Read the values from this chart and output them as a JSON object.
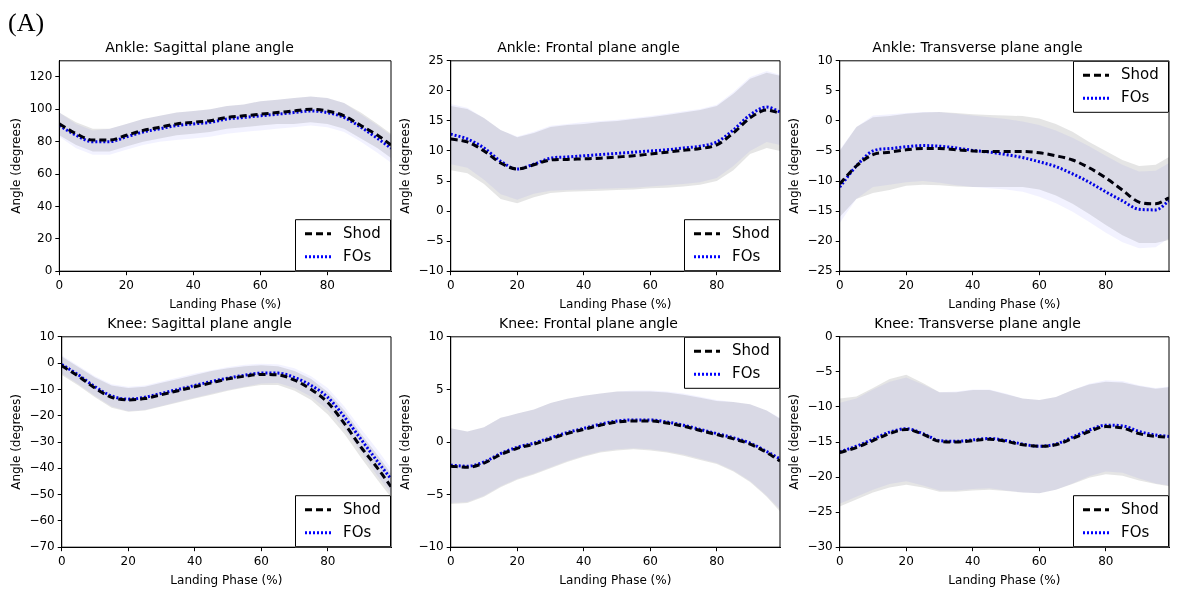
{
  "chart_data": [
    {
      "type": "line",
      "title": "Ankle: Sagittal plane angle",
      "xlabel": "Landing Phase (%)",
      "ylabel": "Angle (degrees)",
      "annotations": [
        "(A)"
      ],
      "legend": "bottom right",
      "x": [
        0,
        5,
        10,
        15,
        20,
        25,
        30,
        35,
        40,
        45,
        50,
        55,
        60,
        65,
        70,
        75,
        80,
        85,
        90,
        95,
        99
      ],
      "xlim": [
        0,
        99
      ],
      "xticks": [
        0,
        20,
        40,
        60,
        80
      ],
      "ylim": [
        0,
        130
      ],
      "yticks": [
        0,
        20,
        40,
        60,
        80,
        100,
        120
      ],
      "series": [
        {
          "name": "Shod",
          "color": "#000000",
          "line_style": "dashed",
          "values": [
            91,
            85,
            81,
            81,
            84,
            87,
            89,
            91,
            92,
            93,
            95,
            96,
            97,
            98,
            99,
            100,
            99,
            96,
            90,
            84,
            78
          ],
          "lower": [
            84,
            78,
            74,
            74,
            77,
            80,
            82,
            84,
            85,
            86,
            88,
            89,
            90,
            91,
            91,
            92,
            91,
            88,
            82,
            76,
            70
          ],
          "upper": [
            98,
            92,
            88,
            88,
            91,
            94,
            96,
            98,
            99,
            100,
            102,
            103,
            105,
            106,
            107,
            108,
            107,
            104,
            98,
            91,
            85
          ]
        },
        {
          "name": "FOs",
          "color": "#0000ff",
          "line_style": "dotted",
          "values": [
            90,
            84,
            80,
            80,
            83,
            86,
            88,
            90,
            91,
            92,
            94,
            95,
            96,
            97,
            98,
            99,
            98,
            95,
            89,
            82,
            76
          ],
          "lower": [
            83,
            76,
            72,
            72,
            75,
            78,
            80,
            81,
            82,
            83,
            85,
            86,
            87,
            88,
            89,
            90,
            89,
            86,
            80,
            73,
            67
          ],
          "upper": [
            98,
            91,
            87,
            88,
            91,
            94,
            96,
            98,
            99,
            100,
            102,
            103,
            105,
            106,
            107,
            108,
            107,
            104,
            97,
            90,
            84
          ]
        }
      ]
    },
    {
      "type": "line",
      "title": "Ankle: Frontal plane angle",
      "xlabel": "Landing Phase (%)",
      "ylabel": "Angle (degrees)",
      "legend": "bottom right",
      "x": [
        0,
        5,
        10,
        15,
        20,
        25,
        30,
        35,
        40,
        45,
        50,
        55,
        60,
        65,
        70,
        75,
        80,
        85,
        90,
        95,
        99
      ],
      "xlim": [
        0,
        99
      ],
      "xticks": [
        0,
        20,
        40,
        60,
        80
      ],
      "ylim": [
        -10,
        25
      ],
      "yticks": [
        -10,
        -5,
        0,
        5,
        10,
        15,
        20,
        25
      ],
      "series": [
        {
          "name": "Shod",
          "color": "#000000",
          "line_style": "dashed",
          "values": [
            12,
            11.5,
            10,
            8,
            7,
            7.7,
            8.5,
            8.6,
            8.7,
            8.8,
            9,
            9.2,
            9.5,
            9.8,
            10.1,
            10.4,
            11,
            13,
            15.5,
            16.8,
            16.3
          ],
          "lower": [
            6.8,
            6.3,
            4.5,
            2,
            1.3,
            2.3,
            3,
            3.2,
            3.3,
            3.4,
            3.5,
            3.6,
            3.8,
            3.9,
            4.1,
            4.4,
            5,
            6.8,
            9.5,
            10.5,
            10
          ],
          "upper": [
            17.5,
            17,
            15.5,
            13.5,
            12.3,
            13,
            14,
            14.3,
            14.5,
            14.8,
            15,
            15.3,
            15.6,
            16,
            16.4,
            16.8,
            17.5,
            19.5,
            22,
            23,
            22.5
          ]
        },
        {
          "name": "FOs",
          "color": "#0000ff",
          "line_style": "dotted",
          "values": [
            12.8,
            12,
            10.5,
            8.3,
            7,
            7.8,
            8.8,
            9,
            9.2,
            9.4,
            9.6,
            9.8,
            10,
            10.2,
            10.5,
            10.8,
            11.5,
            13.5,
            16,
            17.3,
            16.5
          ],
          "lower": [
            7.8,
            7.2,
            5.2,
            2.8,
            1.9,
            2.9,
            3.4,
            3.5,
            3.6,
            3.7,
            3.8,
            3.9,
            4.1,
            4.3,
            4.5,
            4.8,
            5.5,
            7.5,
            10,
            11.5,
            11
          ],
          "upper": [
            17.8,
            17.2,
            15.5,
            13.5,
            12.4,
            13.2,
            14.2,
            14.5,
            14.8,
            15,
            15.2,
            15.5,
            15.8,
            16.2,
            16.6,
            17,
            17.7,
            19.8,
            22.3,
            23.3,
            22.7
          ]
        }
      ]
    },
    {
      "type": "line",
      "title": "Ankle: Transverse plane angle",
      "xlabel": "Landing Phase (%)",
      "ylabel": "Angle (degrees)",
      "legend": "top right",
      "x": [
        0,
        5,
        10,
        15,
        20,
        25,
        30,
        35,
        40,
        45,
        50,
        55,
        60,
        65,
        70,
        75,
        80,
        85,
        90,
        95,
        99
      ],
      "xlim": [
        0,
        99
      ],
      "xticks": [
        0,
        20,
        40,
        60,
        80
      ],
      "ylim": [
        -25,
        10
      ],
      "yticks": [
        -25,
        -20,
        -15,
        -10,
        -5,
        0,
        5,
        10
      ],
      "series": [
        {
          "name": "Shod",
          "color": "#000000",
          "line_style": "dashed",
          "values": [
            -10.5,
            -7.5,
            -5.6,
            -5.2,
            -4.8,
            -4.6,
            -4.6,
            -4.8,
            -5,
            -5.1,
            -5.1,
            -5.1,
            -5.3,
            -5.8,
            -6.5,
            -7.8,
            -9.5,
            -11.5,
            -13.5,
            -13.8,
            -12.8
          ],
          "lower": [
            -16,
            -13,
            -12,
            -11.5,
            -10.8,
            -10.6,
            -10.7,
            -10.9,
            -11,
            -11,
            -11,
            -11,
            -11.4,
            -12.4,
            -13.8,
            -15.5,
            -17.3,
            -19,
            -20.3,
            -20.3,
            -19.8
          ],
          "upper": [
            -5,
            -1,
            0.6,
            0.8,
            1.2,
            1.4,
            1.5,
            1.3,
            1.1,
            1,
            0.9,
            0.8,
            0.4,
            -0.5,
            -1.8,
            -3.5,
            -5,
            -6.5,
            -7.5,
            -7.3,
            -6
          ]
        },
        {
          "name": "FOs",
          "color": "#0000ff",
          "line_style": "dotted",
          "values": [
            -11,
            -7.5,
            -5,
            -4.6,
            -4.3,
            -4.1,
            -4.2,
            -4.5,
            -4.9,
            -5.2,
            -5.6,
            -6.1,
            -6.8,
            -7.6,
            -8.8,
            -10.2,
            -11.8,
            -13.3,
            -14.7,
            -14.8,
            -13.3
          ],
          "lower": [
            -17,
            -13,
            -11,
            -10.6,
            -10.2,
            -10,
            -10.3,
            -10.7,
            -11,
            -11.2,
            -11.4,
            -11.8,
            -12.6,
            -13.7,
            -15.1,
            -16.8,
            -18.6,
            -20.2,
            -21.2,
            -21,
            -19.5
          ],
          "upper": [
            -4.8,
            -1,
            0.9,
            1.1,
            1.3,
            1.5,
            1.5,
            1.2,
            0.9,
            0.6,
            0.3,
            -0.1,
            -0.7,
            -1.6,
            -2.8,
            -4.2,
            -5.8,
            -7.3,
            -8.4,
            -8.3,
            -7
          ]
        }
      ]
    },
    {
      "type": "line",
      "title": "Knee: Sagittal plane angle",
      "xlabel": "Landing Phase (%)",
      "ylabel": "Angle (degrees)",
      "legend": "bottom right",
      "x": [
        0,
        5,
        10,
        15,
        20,
        25,
        30,
        35,
        40,
        45,
        50,
        55,
        60,
        65,
        70,
        75,
        80,
        85,
        90,
        95,
        99
      ],
      "xlim": [
        0,
        99
      ],
      "xticks": [
        0,
        20,
        40,
        60,
        80
      ],
      "ylim": [
        -70,
        10
      ],
      "yticks": [
        -70,
        -60,
        -50,
        -40,
        -30,
        -20,
        -10,
        0,
        10
      ],
      "series": [
        {
          "name": "Shod",
          "color": "#000000",
          "line_style": "dashed",
          "values": [
            -1,
            -5,
            -9.5,
            -13,
            -14,
            -13.5,
            -12,
            -10.5,
            -9,
            -7.5,
            -6,
            -5,
            -4.3,
            -4.5,
            -6.5,
            -10,
            -15,
            -23,
            -32,
            -40,
            -47
          ],
          "lower": [
            -4.5,
            -8.5,
            -13,
            -17,
            -18.5,
            -18,
            -16.5,
            -15,
            -13.5,
            -12,
            -10.5,
            -9.3,
            -8.3,
            -8.3,
            -10.5,
            -14,
            -19.5,
            -27,
            -36,
            -44.5,
            -51
          ],
          "upper": [
            2.5,
            -1.5,
            -5.5,
            -8.5,
            -9.5,
            -9,
            -7.5,
            -6,
            -4.5,
            -3,
            -2,
            -1.2,
            -0.8,
            -1.2,
            -3,
            -6,
            -11,
            -18,
            -27,
            -35,
            -42
          ]
        },
        {
          "name": "FOs",
          "color": "#0000ff",
          "line_style": "dotted",
          "values": [
            -0.5,
            -4.5,
            -9,
            -12.5,
            -13.7,
            -13,
            -11.5,
            -10,
            -8.5,
            -7,
            -5.7,
            -4.6,
            -3.8,
            -3.8,
            -5.5,
            -8.5,
            -13,
            -20.5,
            -29,
            -37.5,
            -44
          ],
          "lower": [
            -4,
            -8,
            -12.5,
            -16.5,
            -18.3,
            -17.8,
            -16.3,
            -14.7,
            -13.2,
            -11.7,
            -10.2,
            -9,
            -7.8,
            -7.6,
            -9.5,
            -12.8,
            -17.8,
            -25,
            -34,
            -43,
            -49.5
          ],
          "upper": [
            3,
            -1,
            -5,
            -8,
            -9,
            -8.5,
            -7,
            -5.5,
            -4,
            -2.7,
            -1.5,
            -0.6,
            -0.2,
            -0.4,
            -2,
            -5,
            -9.5,
            -16.5,
            -25,
            -33,
            -40
          ]
        }
      ]
    },
    {
      "type": "line",
      "title": "Knee: Frontal plane angle",
      "xlabel": "Landing Phase (%)",
      "ylabel": "Angle (degrees)",
      "legend": "top right",
      "x": [
        0,
        5,
        10,
        15,
        20,
        25,
        30,
        35,
        40,
        45,
        50,
        55,
        60,
        65,
        70,
        75,
        80,
        85,
        90,
        95,
        99
      ],
      "xlim": [
        0,
        99
      ],
      "xticks": [
        0,
        20,
        40,
        60,
        80
      ],
      "ylim": [
        -10,
        10
      ],
      "yticks": [
        -10,
        -5,
        0,
        5,
        10
      ],
      "series": [
        {
          "name": "Shod",
          "color": "#000000",
          "line_style": "dashed",
          "values": [
            -2.3,
            -2.4,
            -2,
            -1.2,
            -0.6,
            -0.2,
            0.3,
            0.8,
            1.2,
            1.6,
            1.9,
            2,
            2,
            1.8,
            1.5,
            1.1,
            0.7,
            0.3,
            -0.2,
            -1,
            -1.8
          ],
          "lower": [
            -5.9,
            -5.8,
            -5.2,
            -4.3,
            -3.6,
            -3.1,
            -2.5,
            -1.9,
            -1.4,
            -1,
            -0.8,
            -0.7,
            -0.8,
            -1,
            -1.3,
            -1.7,
            -2.1,
            -2.8,
            -3.8,
            -5.2,
            -6.6
          ],
          "upper": [
            1.3,
            1,
            1.4,
            2.3,
            2.7,
            3.1,
            3.7,
            4.1,
            4.4,
            4.6,
            4.8,
            4.8,
            4.8,
            4.7,
            4.5,
            4.2,
            3.9,
            3.8,
            3.6,
            3,
            2.2
          ]
        },
        {
          "name": "FOs",
          "color": "#0000ff",
          "line_style": "dotted",
          "values": [
            -2.2,
            -2.3,
            -1.9,
            -1.1,
            -0.5,
            -0.1,
            0.4,
            0.9,
            1.3,
            1.7,
            2,
            2.1,
            2.1,
            1.9,
            1.6,
            1.2,
            0.8,
            0.4,
            -0.1,
            -0.9,
            -1.6
          ],
          "lower": [
            -5.8,
            -5.7,
            -5.1,
            -4.2,
            -3.5,
            -3,
            -2.4,
            -1.8,
            -1.3,
            -0.9,
            -0.7,
            -0.6,
            -0.7,
            -0.9,
            -1.2,
            -1.6,
            -2,
            -2.7,
            -3.7,
            -5.1,
            -6.4
          ],
          "upper": [
            1.3,
            1,
            1.4,
            2.3,
            2.7,
            3.1,
            3.7,
            4.1,
            4.4,
            4.6,
            4.8,
            4.9,
            4.9,
            4.8,
            4.6,
            4.3,
            4,
            3.8,
            3.6,
            3,
            2.3
          ]
        }
      ]
    },
    {
      "type": "line",
      "title": "Knee: Transverse plane angle",
      "xlabel": "Landing Phase (%)",
      "ylabel": "Angle (degrees)",
      "legend": "bottom right",
      "x": [
        0,
        5,
        10,
        15,
        20,
        25,
        30,
        35,
        40,
        45,
        50,
        55,
        60,
        65,
        70,
        75,
        80,
        85,
        90,
        95,
        99
      ],
      "xlim": [
        0,
        99
      ],
      "xticks": [
        0,
        20,
        40,
        60,
        80
      ],
      "ylim": [
        -30,
        0
      ],
      "yticks": [
        -30,
        -25,
        -20,
        -15,
        -10,
        -5,
        0
      ],
      "series": [
        {
          "name": "Shod",
          "color": "#000000",
          "line_style": "dashed",
          "values": [
            -16.5,
            -15.8,
            -14.8,
            -13.8,
            -13.2,
            -13.9,
            -14.9,
            -15,
            -14.8,
            -14.6,
            -14.9,
            -15.4,
            -15.6,
            -15.4,
            -14.5,
            -13.5,
            -12.8,
            -13,
            -13.8,
            -14.2,
            -14.3
          ],
          "lower": [
            -24.2,
            -23.2,
            -22.2,
            -21.5,
            -21.1,
            -21.5,
            -22.1,
            -22.1,
            -21.9,
            -21.8,
            -22,
            -22.2,
            -22.3,
            -21.8,
            -21,
            -20.1,
            -19.6,
            -19.8,
            -20.5,
            -21,
            -21.3
          ],
          "upper": [
            -8.8,
            -8.5,
            -7.3,
            -6,
            -5.4,
            -6.6,
            -7.9,
            -7.9,
            -7.6,
            -7.6,
            -8.2,
            -8.8,
            -9,
            -8.6,
            -7.6,
            -6.8,
            -6.4,
            -6.5,
            -7,
            -7.4,
            -7.2
          ]
        },
        {
          "name": "FOs",
          "color": "#0000ff",
          "line_style": "dotted",
          "values": [
            -16.4,
            -15.6,
            -14.6,
            -13.6,
            -13.1,
            -13.8,
            -14.8,
            -14.9,
            -14.7,
            -14.5,
            -14.8,
            -15.3,
            -15.6,
            -15.3,
            -14.3,
            -13.3,
            -12.6,
            -12.7,
            -13.5,
            -14,
            -14.2
          ],
          "lower": [
            -23.8,
            -22.8,
            -21.8,
            -21,
            -20.6,
            -21.2,
            -21.9,
            -21.9,
            -21.7,
            -21.6,
            -21.9,
            -22.2,
            -22.3,
            -21.8,
            -20.9,
            -19.9,
            -19.2,
            -19.4,
            -20.2,
            -20.9,
            -21.2
          ],
          "upper": [
            -9.4,
            -8.8,
            -7.5,
            -6.4,
            -5.8,
            -6.8,
            -7.9,
            -7.8,
            -7.5,
            -7.5,
            -8.1,
            -8.8,
            -9,
            -8.6,
            -7.6,
            -6.7,
            -6.2,
            -6.3,
            -6.9,
            -7.3,
            -7.1
          ]
        }
      ]
    }
  ]
}
